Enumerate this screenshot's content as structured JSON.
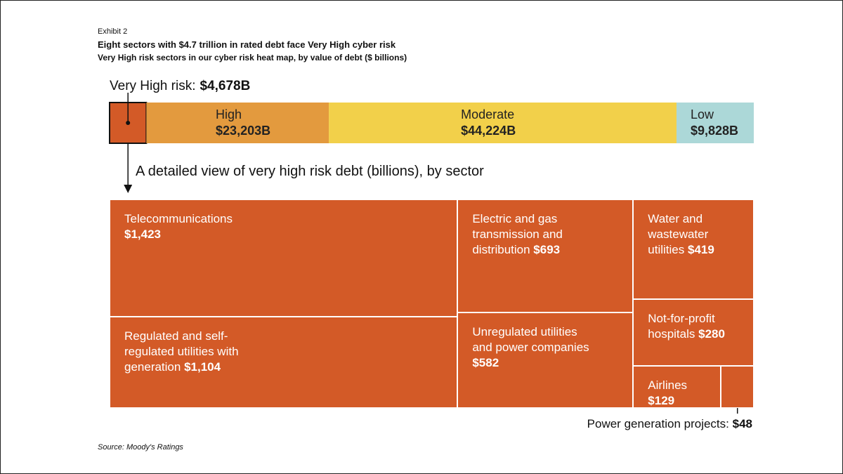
{
  "chart_data": [
    {
      "type": "stacked_bar",
      "label": "Exhibit 2",
      "title": "Eight sectors with $4.7 trillion in rated debt face Very High cyber risk",
      "subtitle": "Very High risk sectors in our cyber risk heat map, by value of debt ($ billions)",
      "source": "Source: Moody's Ratings",
      "categories": [
        "Very High risk:",
        "High",
        "Moderate",
        "Low"
      ],
      "values": [
        4678,
        23203,
        44224,
        9828
      ],
      "value_labels": [
        "$4,678B",
        "$23,203B",
        "$44,224B",
        "$9,828B"
      ],
      "colors": [
        "#d35a27",
        "#e39a3e",
        "#f2d04a",
        "#acd8d8"
      ]
    },
    {
      "type": "treemap",
      "title": "A detailed view of very high risk debt (billions), by sector",
      "categories": [
        "Telecommunications",
        "Regulated and self-regulated utilities with generation",
        "Electric and gas transmission and distribution",
        "Unregulated utilities and power companies",
        "Water and wastewater utilities",
        "Not-for-profit hospitals",
        "Airlines",
        "Power generation projects:"
      ],
      "values": [
        1423,
        1104,
        693,
        582,
        419,
        280,
        129,
        48
      ],
      "value_labels": [
        "$1,423",
        "$1,104",
        "$693",
        "$582",
        "$419",
        "$280",
        "$129",
        "$48"
      ],
      "color": "#d35a27"
    }
  ]
}
